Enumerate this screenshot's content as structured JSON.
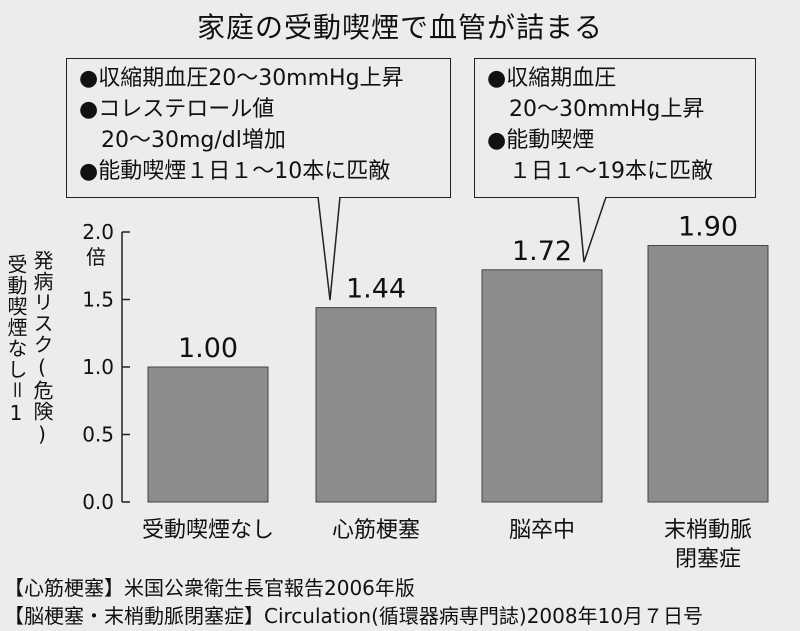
{
  "title": "家庭の受動喫煙で血管が詰まる",
  "callouts": [
    {
      "lines": [
        "●収縮期血圧20～30mmHg上昇",
        "●コレステロール値",
        "　20～30mg/dl増加",
        "●能動喫煙１日１～10本に匹敵"
      ]
    },
    {
      "lines": [
        "●収縮期血圧",
        "　20～30mmHg上昇",
        "●能動喫煙",
        "　１日１～19本に匹敵"
      ]
    }
  ],
  "y_axis_label": "発病リスク(危険)",
  "y_axis_sublabel": "受動喫煙なし＝1",
  "footer": {
    "line1": "【心筋梗塞】米国公衆衛生長官報告2006年版",
    "line2": "【脳梗塞・末梢動脈閉塞症】Circulation(循環器病専門誌)2008年10月７日号"
  },
  "colors": {
    "bar": "#8c8c8c",
    "background": "#ececec",
    "text": "#111111"
  },
  "chart_data": {
    "type": "bar",
    "title": "家庭の受動喫煙で血管が詰まる",
    "ylabel": "発病リスク(危険)",
    "yunit": "倍",
    "categories": [
      "受動喫煙なし",
      "心筋梗塞",
      "脳卒中",
      "末梢動脈閉塞症"
    ],
    "category_lines": [
      [
        "受動喫煙なし"
      ],
      [
        "心筋梗塞"
      ],
      [
        "脳卒中"
      ],
      [
        "末梢動脈",
        "閉塞症"
      ]
    ],
    "values": [
      1.0,
      1.44,
      1.72,
      1.9
    ],
    "value_labels": [
      "1.00",
      "1.44",
      "1.72",
      "1.90"
    ],
    "ylim": [
      0,
      2.0
    ],
    "yticks": [
      "0.0",
      "0.5",
      "1.0",
      "1.5",
      "2.0"
    ],
    "grid": false,
    "legend": "none"
  }
}
